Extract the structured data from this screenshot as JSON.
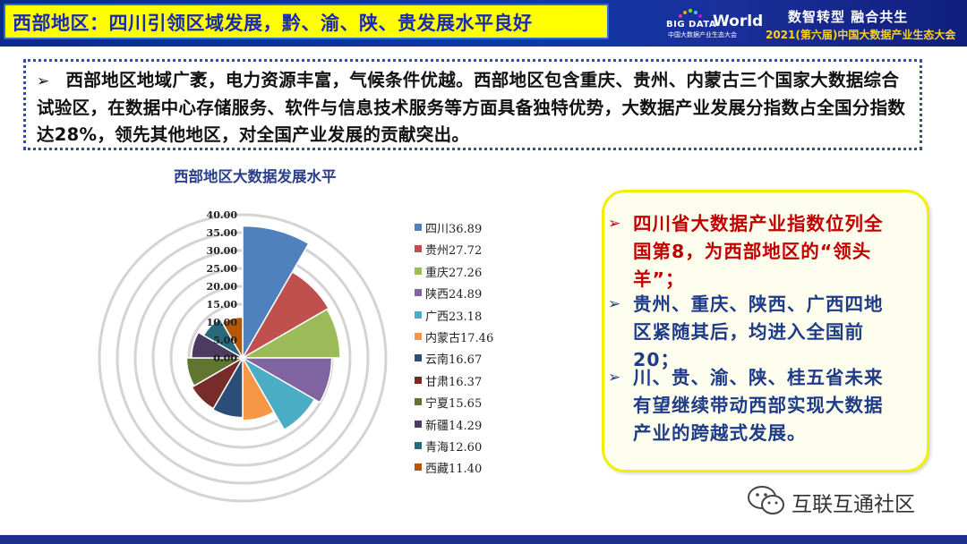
{
  "header": {
    "title": "西部地区：四川引领区域发展，黔、渝、陕、贵发展水平良好",
    "logo_big": "BIG DATA",
    "logo_world": "World",
    "logo_sub": "中国大数据产业生态大会",
    "slogan": "数智转型 融合共生",
    "conference": "2021(第六届)中国大数据产业生态大会"
  },
  "intro": {
    "bullet": "➢",
    "text": "西部地区地域广袤，电力资源丰富，气候条件优越。西部地区包含重庆、贵州、内蒙古三个国家大数据综合试验区，在数据中心存储服务、软件与信息技术服务等方面具备独特优势，大数据产业发展分指数占全国分指数达28%，领先其他地区，对全国产业发展的贡献突出。"
  },
  "chart_data": {
    "type": "polar-area",
    "title": "西部地区大数据发展水平",
    "categories": [
      "四川",
      "贵州",
      "重庆",
      "陕西",
      "广西",
      "内蒙古",
      "云南",
      "甘肃",
      "宁夏",
      "新疆",
      "青海",
      "西藏"
    ],
    "values": [
      36.89,
      27.72,
      27.26,
      24.89,
      23.18,
      17.46,
      16.67,
      16.37,
      15.65,
      14.29,
      12.6,
      11.4
    ],
    "legend_labels": [
      "四川36.89",
      "贵州27.72",
      "重庆27.26",
      "陕西24.89",
      "广西23.18",
      "内蒙古17.46",
      "云南16.67",
      "甘肃16.37",
      "宁夏15.65",
      "新疆14.29",
      "青海12.60",
      "西藏11.40"
    ],
    "colors": [
      "#4f81bd",
      "#c0504d",
      "#9bbb59",
      "#8064a2",
      "#4bacc6",
      "#f79646",
      "#2c4d75",
      "#772c2a",
      "#5f7530",
      "#4d3b62",
      "#276a7c",
      "#b65708"
    ],
    "radial_ticks": [
      "0.00",
      "5.00",
      "10.00",
      "15.00",
      "20.00",
      "25.00",
      "30.00",
      "35.00",
      "40.00"
    ],
    "radial_range": [
      0,
      40
    ],
    "grid": true,
    "legend_position": "right"
  },
  "callout": {
    "bullet": "➢",
    "items": [
      {
        "text": "四川省大数据产业指数位列全国第8，为西部地区的“领头羊”；",
        "color": "#c00000"
      },
      {
        "text": "贵州、重庆、陕西、广西四地区紧随其后，均进入全国前20；",
        "color": "#1f3c88"
      },
      {
        "text": "川、贵、渝、陕、桂五省未来有望继续带动西部实现大数据产业的跨越式发展。",
        "color": "#1f3c88"
      }
    ]
  },
  "watermark": {
    "text": "互联互通社区",
    "icon": "wechat-icon"
  }
}
